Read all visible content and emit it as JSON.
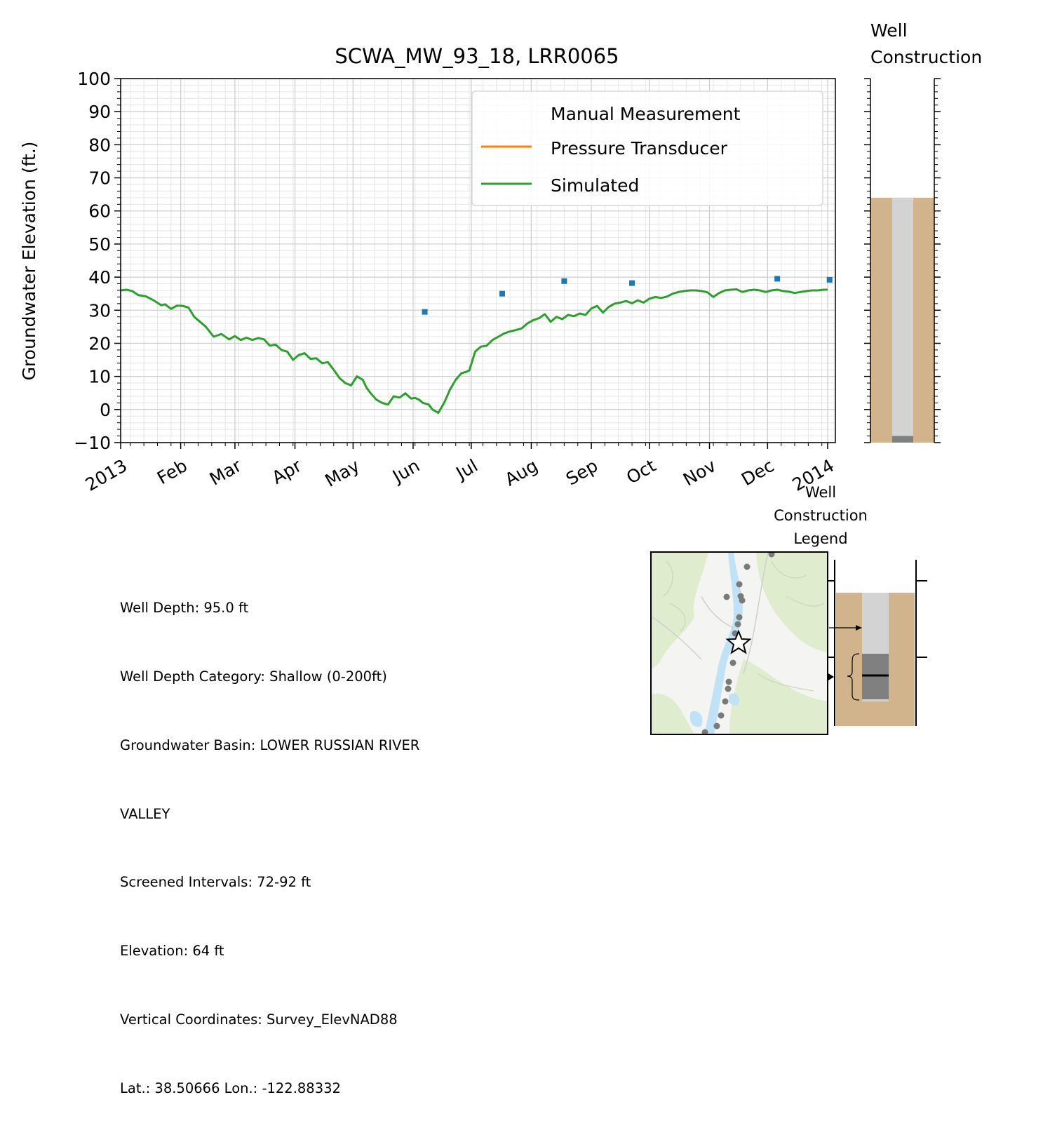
{
  "chart_data": {
    "type": "line",
    "title": "SCWA_MW_93_18, LRR0065",
    "xlabel": "",
    "ylabel": "Groundwater Elevation (ft.)",
    "xlim": [
      "2013-01-01",
      "2014-01-05"
    ],
    "ylim": [
      -10,
      100
    ],
    "grid": true,
    "legend_position": "top-right",
    "x_tick_labels": [
      "2013",
      "Feb",
      "Mar",
      "Apr",
      "May",
      "Jun",
      "Jul",
      "Aug",
      "Sep",
      "Oct",
      "Nov",
      "Dec",
      "2014"
    ],
    "y_tick_labels": [
      "−10",
      "0",
      "10",
      "20",
      "30",
      "40",
      "50",
      "60",
      "70",
      "80",
      "90",
      "100"
    ],
    "series": [
      {
        "name": "Manual Measurement",
        "kind": "scatter",
        "color": "#1f77b4",
        "x": [
          "2013-06-07",
          "2013-07-17",
          "2013-08-18",
          "2013-09-22",
          "2013-12-06",
          "2014-01-02"
        ],
        "y": [
          29.5,
          35.0,
          38.8,
          38.2,
          39.5,
          39.2
        ]
      },
      {
        "name": "Pressure Transducer",
        "kind": "line",
        "color": "#ff7f0e",
        "x": [],
        "y": []
      },
      {
        "name": "Simulated",
        "kind": "line",
        "color": "#2ca02c",
        "x": [
          "2013-01-01",
          "2013-01-04",
          "2013-01-07",
          "2013-01-10",
          "2013-01-14",
          "2013-01-18",
          "2013-01-22",
          "2013-01-24",
          "2013-01-27",
          "2013-01-30",
          "2013-02-02",
          "2013-02-05",
          "2013-02-08",
          "2013-02-11",
          "2013-02-14",
          "2013-02-18",
          "2013-02-22",
          "2013-02-26",
          "2013-03-01",
          "2013-03-04",
          "2013-03-07",
          "2013-03-10",
          "2013-03-13",
          "2013-03-16",
          "2013-03-19",
          "2013-03-22",
          "2013-03-25",
          "2013-03-28",
          "2013-03-31",
          "2013-04-03",
          "2013-04-06",
          "2013-04-09",
          "2013-04-12",
          "2013-04-15",
          "2013-04-18",
          "2013-04-21",
          "2013-04-24",
          "2013-04-27",
          "2013-04-30",
          "2013-05-03",
          "2013-05-06",
          "2013-05-08",
          "2013-05-10",
          "2013-05-13",
          "2013-05-16",
          "2013-05-19",
          "2013-05-22",
          "2013-05-25",
          "2013-05-28",
          "2013-05-31",
          "2013-06-02",
          "2013-06-04",
          "2013-06-06",
          "2013-06-09",
          "2013-06-11",
          "2013-06-14",
          "2013-06-17",
          "2013-06-20",
          "2013-06-23",
          "2013-06-26",
          "2013-06-28",
          "2013-06-30",
          "2013-07-03",
          "2013-07-06",
          "2013-07-09",
          "2013-07-12",
          "2013-07-15",
          "2013-07-18",
          "2013-07-21",
          "2013-07-24",
          "2013-07-27",
          "2013-07-30",
          "2013-08-02",
          "2013-08-05",
          "2013-08-08",
          "2013-08-11",
          "2013-08-14",
          "2013-08-17",
          "2013-08-20",
          "2013-08-23",
          "2013-08-26",
          "2013-08-29",
          "2013-09-01",
          "2013-09-04",
          "2013-09-07",
          "2013-09-10",
          "2013-09-13",
          "2013-09-16",
          "2013-09-19",
          "2013-09-22",
          "2013-09-25",
          "2013-09-28",
          "2013-10-01",
          "2013-10-04",
          "2013-10-07",
          "2013-10-10",
          "2013-10-13",
          "2013-10-16",
          "2013-10-19",
          "2013-10-22",
          "2013-10-25",
          "2013-10-28",
          "2013-10-31",
          "2013-11-03",
          "2013-11-06",
          "2013-11-09",
          "2013-11-12",
          "2013-11-15",
          "2013-11-18",
          "2013-11-21",
          "2013-11-24",
          "2013-11-27",
          "2013-11-30",
          "2013-12-03",
          "2013-12-06",
          "2013-12-09",
          "2013-12-12",
          "2013-12-15",
          "2013-12-18",
          "2013-12-21",
          "2013-12-24",
          "2013-12-27",
          "2013-12-30",
          "2014-01-01"
        ],
        "y": [
          36.0,
          36.2,
          35.8,
          34.6,
          34.2,
          33.0,
          31.5,
          31.8,
          30.4,
          31.4,
          31.3,
          30.8,
          28.0,
          26.5,
          25.0,
          22.0,
          22.8,
          21.2,
          22.2,
          21.0,
          21.7,
          21.0,
          21.6,
          21.2,
          19.3,
          19.6,
          18.0,
          17.5,
          15.0,
          16.5,
          17.0,
          15.3,
          15.5,
          14.0,
          14.3,
          12.0,
          9.5,
          8.0,
          7.3,
          10.0,
          9.0,
          6.5,
          5.0,
          3.0,
          2.0,
          1.5,
          4.0,
          3.6,
          4.9,
          3.3,
          3.5,
          3.0,
          2.0,
          1.5,
          0.0,
          -1.0,
          2.0,
          6.0,
          9.0,
          11.0,
          11.3,
          11.8,
          17.5,
          19.0,
          19.3,
          21.0,
          22.0,
          23.0,
          23.6,
          24.0,
          24.5,
          26.0,
          27.0,
          27.6,
          28.8,
          26.5,
          28.0,
          27.3,
          28.6,
          28.2,
          29.0,
          28.6,
          30.5,
          31.3,
          29.3,
          31.0,
          32.0,
          32.3,
          32.8,
          32.1,
          33.0,
          32.3,
          33.5,
          34.0,
          33.7,
          34.1,
          35.0,
          35.5,
          35.8,
          36.0,
          36.0,
          35.8,
          35.4,
          34.0,
          35.2,
          36.0,
          36.2,
          36.3,
          35.5,
          36.0,
          36.2,
          36.0,
          35.5,
          36.0,
          36.2,
          35.8,
          35.6,
          35.2,
          35.5,
          35.8,
          36.0,
          36.0,
          36.2,
          36.2
        ]
      }
    ]
  },
  "well_construction": {
    "title": "Well Construction",
    "ground_elevation_ft": 64,
    "well_depth_ft": 95,
    "screen_interval_ft": [
      72,
      92
    ],
    "casing_color": "#d3d3d3",
    "soil_color": "#d2b48c",
    "screen_color": "#808080"
  },
  "legend_panel": {
    "title": "Well Construction Legend"
  },
  "info": {
    "well_depth": "Well Depth: 95.0 ft",
    "depth_category": "Well Depth Category: Shallow (0-200ft)",
    "basin_line1": "Groundwater Basin: LOWER RUSSIAN RIVER",
    "basin_line2": "VALLEY",
    "screened": "Screened Intervals: 72-92 ft",
    "elevation": "Elevation: 64 ft",
    "vertical": "Vertical Coordinates: Survey_ElevNAD88",
    "latlon": "Lat.: 38.50666 Lon.: -122.88332"
  },
  "map": {
    "land_color": "#f4f4f2",
    "vegetation_color": "#dfeccd",
    "water_color": "#bfe2f6",
    "well_marker_color": "#7a7a7a",
    "star_icon": "star-icon"
  }
}
